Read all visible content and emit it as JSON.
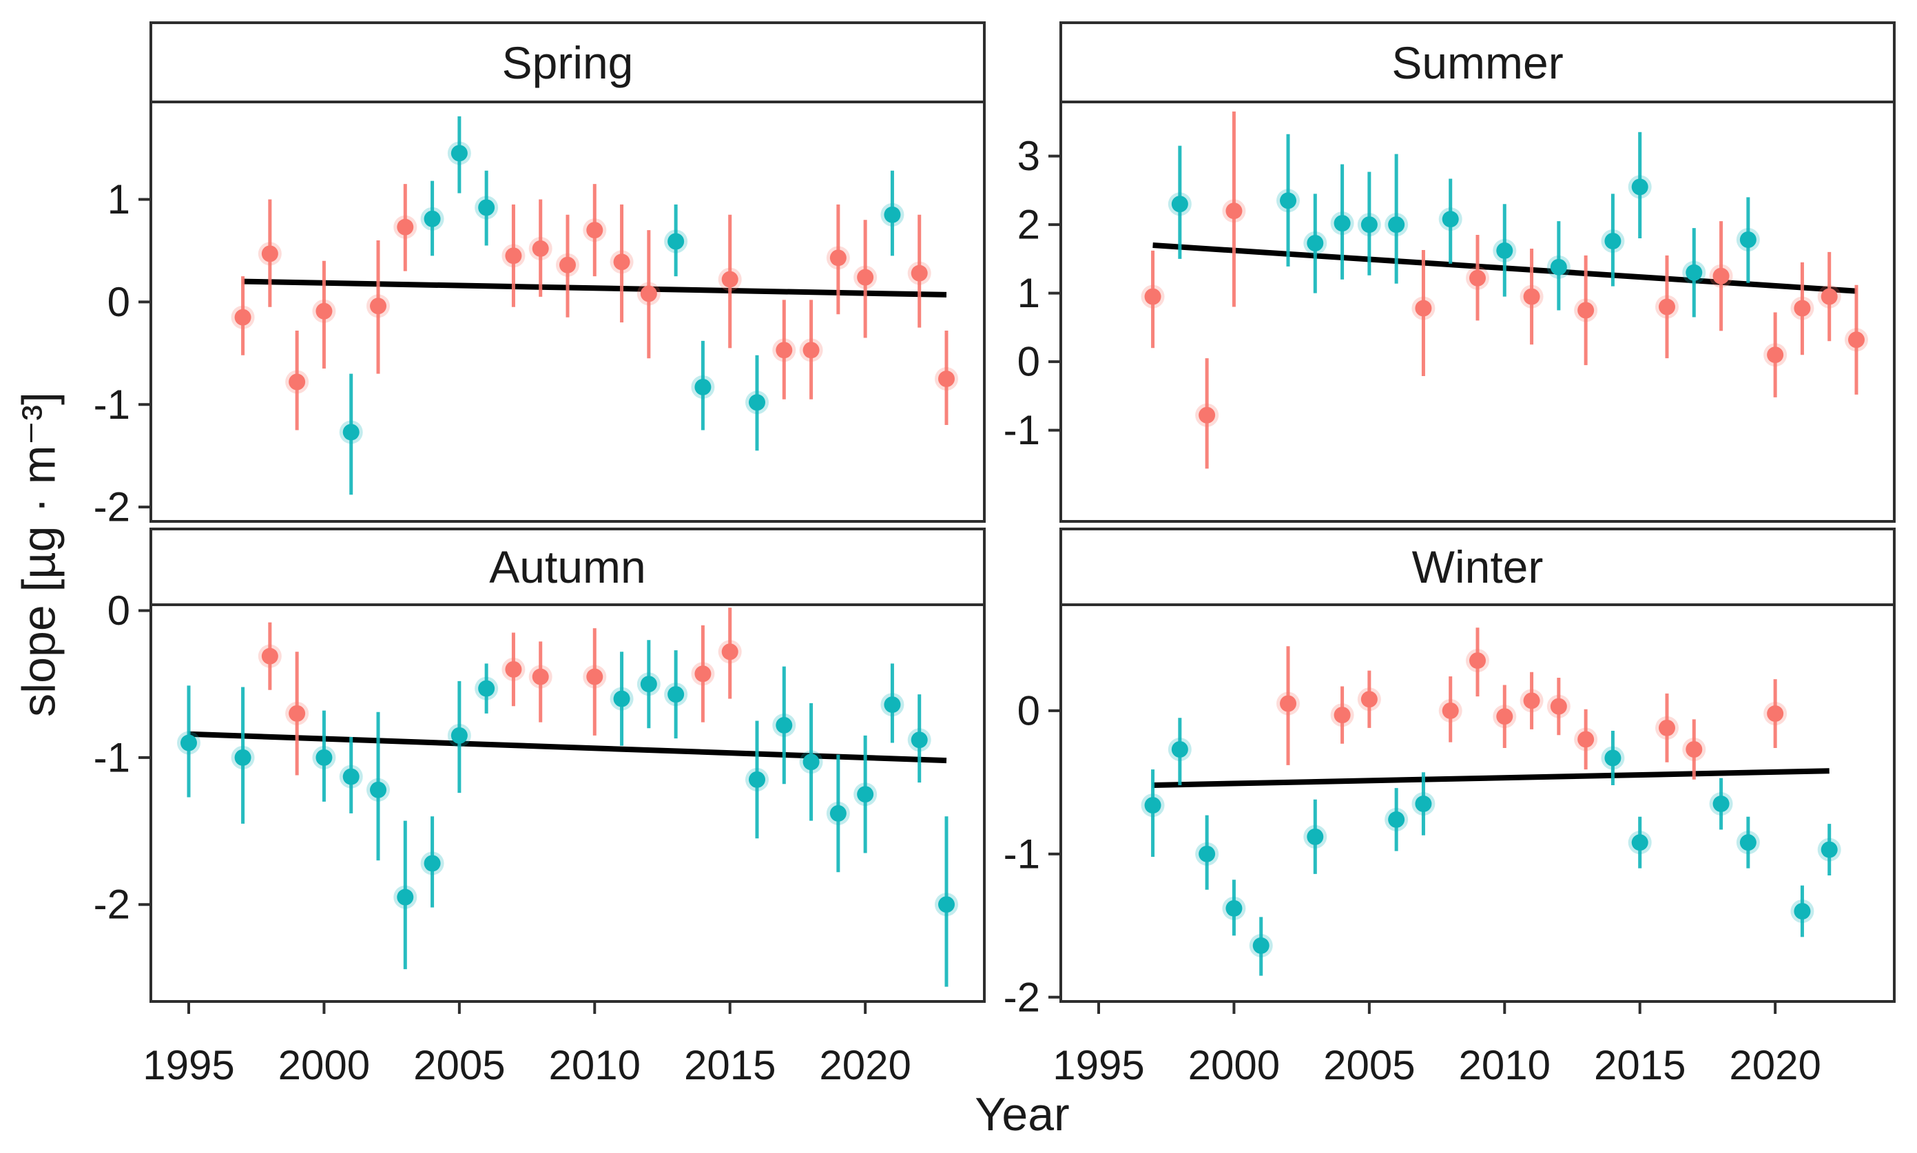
{
  "chart_data": {
    "type": "scatter",
    "title": "",
    "xlabel": "Year",
    "ylabel": "slope [µg · m⁻³]",
    "legend": "none",
    "grid": "off",
    "x_range": [
      1993.6,
      2024.4
    ],
    "x_ticks": [
      1995,
      2000,
      2005,
      2010,
      2015,
      2020
    ],
    "colors": {
      "red": "#F8766D",
      "teal": "#10B5BA",
      "trend": "#000000",
      "border": "#2e2e2e",
      "text": "#1a1a1a",
      "background": "#ffffff"
    },
    "layout": {
      "fig_w": 2783,
      "fig_h": 1674,
      "cols": [
        [
          219,
          1429
        ],
        [
          1540,
          2750
        ]
      ],
      "strip_rows": [
        [
          33,
          148
        ],
        [
          768,
          878
        ]
      ],
      "panel_rows": [
        [
          148,
          757
        ],
        [
          878,
          1454
        ]
      ],
      "tick_len": 18,
      "border_w": 4,
      "marker_r": 12,
      "errbar_w": 5,
      "trend_w": 8,
      "tick_font": 60,
      "x_tick_label_y": 1537,
      "x_axis_title_x": 1484,
      "x_axis_title_y": 1618,
      "y_axis_title_x": 57,
      "y_axis_title_y": 805
    },
    "panels": [
      {
        "title": "Spring",
        "row": 0,
        "col": 0,
        "y_range": [
          -2.14,
          1.95
        ],
        "y_ticks": [
          1,
          0,
          -1,
          -2
        ],
        "trend": {
          "x1": 1997,
          "y1": 0.2,
          "x2": 2023,
          "y2": 0.07
        },
        "points": [
          {
            "x": 1997,
            "y": -0.15,
            "lo": -0.52,
            "hi": 0.25,
            "c": "red"
          },
          {
            "x": 1998,
            "y": 0.47,
            "lo": -0.05,
            "hi": 1.0,
            "c": "red"
          },
          {
            "x": 1999,
            "y": -0.78,
            "lo": -1.25,
            "hi": -0.28,
            "c": "red"
          },
          {
            "x": 2000,
            "y": -0.09,
            "lo": -0.65,
            "hi": 0.4,
            "c": "red"
          },
          {
            "x": 2001,
            "y": -1.27,
            "lo": -1.88,
            "hi": -0.7,
            "c": "teal"
          },
          {
            "x": 2002,
            "y": -0.04,
            "lo": -0.7,
            "hi": 0.6,
            "c": "red"
          },
          {
            "x": 2003,
            "y": 0.73,
            "lo": 0.3,
            "hi": 1.15,
            "c": "red"
          },
          {
            "x": 2004,
            "y": 0.81,
            "lo": 0.45,
            "hi": 1.18,
            "c": "teal"
          },
          {
            "x": 2005,
            "y": 1.45,
            "lo": 1.06,
            "hi": 1.81,
            "c": "teal"
          },
          {
            "x": 2006,
            "y": 0.92,
            "lo": 0.55,
            "hi": 1.28,
            "c": "teal"
          },
          {
            "x": 2007,
            "y": 0.45,
            "lo": -0.05,
            "hi": 0.95,
            "c": "red"
          },
          {
            "x": 2008,
            "y": 0.52,
            "lo": 0.05,
            "hi": 1.0,
            "c": "red"
          },
          {
            "x": 2009,
            "y": 0.36,
            "lo": -0.15,
            "hi": 0.85,
            "c": "red"
          },
          {
            "x": 2010,
            "y": 0.7,
            "lo": 0.25,
            "hi": 1.15,
            "c": "red"
          },
          {
            "x": 2011,
            "y": 0.39,
            "lo": -0.2,
            "hi": 0.95,
            "c": "red"
          },
          {
            "x": 2012,
            "y": 0.08,
            "lo": -0.55,
            "hi": 0.7,
            "c": "red"
          },
          {
            "x": 2013,
            "y": 0.59,
            "lo": 0.25,
            "hi": 0.95,
            "c": "teal"
          },
          {
            "x": 2014,
            "y": -0.83,
            "lo": -1.25,
            "hi": -0.38,
            "c": "teal"
          },
          {
            "x": 2015,
            "y": 0.22,
            "lo": -0.45,
            "hi": 0.85,
            "c": "red"
          },
          {
            "x": 2016,
            "y": -0.98,
            "lo": -1.45,
            "hi": -0.52,
            "c": "teal"
          },
          {
            "x": 2017,
            "y": -0.47,
            "lo": -0.95,
            "hi": 0.02,
            "c": "red"
          },
          {
            "x": 2018,
            "y": -0.47,
            "lo": -0.95,
            "hi": 0.02,
            "c": "red"
          },
          {
            "x": 2019,
            "y": 0.43,
            "lo": -0.12,
            "hi": 0.95,
            "c": "red"
          },
          {
            "x": 2020,
            "y": 0.24,
            "lo": -0.35,
            "hi": 0.8,
            "c": "red"
          },
          {
            "x": 2021,
            "y": 0.85,
            "lo": 0.45,
            "hi": 1.28,
            "c": "teal"
          },
          {
            "x": 2022,
            "y": 0.28,
            "lo": -0.25,
            "hi": 0.85,
            "c": "red"
          },
          {
            "x": 2023,
            "y": -0.75,
            "lo": -1.2,
            "hi": -0.28,
            "c": "red"
          }
        ]
      },
      {
        "title": "Summer",
        "row": 0,
        "col": 1,
        "y_range": [
          -2.33,
          3.79
        ],
        "y_ticks": [
          3,
          2,
          1,
          0,
          -1
        ],
        "trend": {
          "x1": 1997,
          "y1": 1.7,
          "x2": 2023,
          "y2": 1.03
        },
        "points": [
          {
            "x": 1997,
            "y": 0.95,
            "lo": 0.2,
            "hi": 1.62,
            "c": "red"
          },
          {
            "x": 1998,
            "y": 2.3,
            "lo": 1.5,
            "hi": 3.15,
            "c": "teal"
          },
          {
            "x": 1999,
            "y": -0.78,
            "lo": -1.56,
            "hi": 0.05,
            "c": "red"
          },
          {
            "x": 2000,
            "y": 2.2,
            "lo": 0.8,
            "hi": 3.65,
            "c": "red"
          },
          {
            "x": 2002,
            "y": 2.35,
            "lo": 1.39,
            "hi": 3.32,
            "c": "teal"
          },
          {
            "x": 2003,
            "y": 1.73,
            "lo": 1.0,
            "hi": 2.45,
            "c": "teal"
          },
          {
            "x": 2004,
            "y": 2.02,
            "lo": 1.2,
            "hi": 2.88,
            "c": "teal"
          },
          {
            "x": 2005,
            "y": 2.0,
            "lo": 1.26,
            "hi": 2.77,
            "c": "teal"
          },
          {
            "x": 2006,
            "y": 2.0,
            "lo": 1.14,
            "hi": 3.03,
            "c": "teal"
          },
          {
            "x": 2007,
            "y": 0.78,
            "lo": -0.21,
            "hi": 1.63,
            "c": "red"
          },
          {
            "x": 2008,
            "y": 2.08,
            "lo": 1.43,
            "hi": 2.67,
            "c": "teal"
          },
          {
            "x": 2009,
            "y": 1.22,
            "lo": 0.6,
            "hi": 1.85,
            "c": "red"
          },
          {
            "x": 2010,
            "y": 1.62,
            "lo": 0.95,
            "hi": 2.3,
            "c": "teal"
          },
          {
            "x": 2011,
            "y": 0.95,
            "lo": 0.25,
            "hi": 1.65,
            "c": "red"
          },
          {
            "x": 2012,
            "y": 1.38,
            "lo": 0.75,
            "hi": 2.05,
            "c": "teal"
          },
          {
            "x": 2013,
            "y": 0.75,
            "lo": -0.05,
            "hi": 1.55,
            "c": "red"
          },
          {
            "x": 2014,
            "y": 1.76,
            "lo": 1.1,
            "hi": 2.45,
            "c": "teal"
          },
          {
            "x": 2015,
            "y": 2.55,
            "lo": 1.8,
            "hi": 3.35,
            "c": "teal"
          },
          {
            "x": 2016,
            "y": 0.8,
            "lo": 0.05,
            "hi": 1.55,
            "c": "red"
          },
          {
            "x": 2017,
            "y": 1.3,
            "lo": 0.65,
            "hi": 1.95,
            "c": "teal"
          },
          {
            "x": 2018,
            "y": 1.25,
            "lo": 0.45,
            "hi": 2.05,
            "c": "red"
          },
          {
            "x": 2019,
            "y": 1.78,
            "lo": 1.15,
            "hi": 2.4,
            "c": "teal"
          },
          {
            "x": 2020,
            "y": 0.1,
            "lo": -0.52,
            "hi": 0.72,
            "c": "red"
          },
          {
            "x": 2021,
            "y": 0.78,
            "lo": 0.1,
            "hi": 1.45,
            "c": "red"
          },
          {
            "x": 2022,
            "y": 0.95,
            "lo": 0.3,
            "hi": 1.6,
            "c": "red"
          },
          {
            "x": 2023,
            "y": 0.32,
            "lo": -0.48,
            "hi": 1.12,
            "c": "red"
          }
        ]
      },
      {
        "title": "Autumn",
        "row": 1,
        "col": 0,
        "y_range": [
          -2.66,
          0.04
        ],
        "y_ticks": [
          0,
          -1,
          -2
        ],
        "trend": {
          "x1": 1995,
          "y1": -0.84,
          "x2": 2023,
          "y2": -1.02
        },
        "points": [
          {
            "x": 1995,
            "y": -0.9,
            "lo": -1.27,
            "hi": -0.51,
            "c": "teal"
          },
          {
            "x": 1997,
            "y": -1.0,
            "lo": -1.45,
            "hi": -0.52,
            "c": "teal"
          },
          {
            "x": 1998,
            "y": -0.31,
            "lo": -0.54,
            "hi": -0.08,
            "c": "red"
          },
          {
            "x": 1999,
            "y": -0.7,
            "lo": -1.12,
            "hi": -0.28,
            "c": "red"
          },
          {
            "x": 2000,
            "y": -1.0,
            "lo": -1.3,
            "hi": -0.68,
            "c": "teal"
          },
          {
            "x": 2001,
            "y": -1.13,
            "lo": -1.38,
            "hi": -0.86,
            "c": "teal"
          },
          {
            "x": 2002,
            "y": -1.22,
            "lo": -1.7,
            "hi": -0.69,
            "c": "teal"
          },
          {
            "x": 2003,
            "y": -1.95,
            "lo": -2.44,
            "hi": -1.43,
            "c": "teal"
          },
          {
            "x": 2004,
            "y": -1.72,
            "lo": -2.02,
            "hi": -1.4,
            "c": "teal"
          },
          {
            "x": 2005,
            "y": -0.85,
            "lo": -1.24,
            "hi": -0.48,
            "c": "teal"
          },
          {
            "x": 2006,
            "y": -0.53,
            "lo": -0.7,
            "hi": -0.36,
            "c": "teal"
          },
          {
            "x": 2007,
            "y": -0.4,
            "lo": -0.65,
            "hi": -0.15,
            "c": "red"
          },
          {
            "x": 2008,
            "y": -0.45,
            "lo": -0.76,
            "hi": -0.21,
            "c": "red"
          },
          {
            "x": 2010,
            "y": -0.45,
            "lo": -0.85,
            "hi": -0.12,
            "c": "red"
          },
          {
            "x": 2011,
            "y": -0.6,
            "lo": -0.92,
            "hi": -0.28,
            "c": "teal"
          },
          {
            "x": 2012,
            "y": -0.5,
            "lo": -0.8,
            "hi": -0.2,
            "c": "teal"
          },
          {
            "x": 2013,
            "y": -0.57,
            "lo": -0.87,
            "hi": -0.27,
            "c": "teal"
          },
          {
            "x": 2014,
            "y": -0.43,
            "lo": -0.76,
            "hi": -0.1,
            "c": "red"
          },
          {
            "x": 2015,
            "y": -0.28,
            "lo": -0.6,
            "hi": 0.02,
            "c": "red"
          },
          {
            "x": 2016,
            "y": -1.15,
            "lo": -1.55,
            "hi": -0.75,
            "c": "teal"
          },
          {
            "x": 2017,
            "y": -0.78,
            "lo": -1.18,
            "hi": -0.38,
            "c": "teal"
          },
          {
            "x": 2018,
            "y": -1.03,
            "lo": -1.43,
            "hi": -0.63,
            "c": "teal"
          },
          {
            "x": 2019,
            "y": -1.38,
            "lo": -1.78,
            "hi": -0.98,
            "c": "teal"
          },
          {
            "x": 2020,
            "y": -1.25,
            "lo": -1.65,
            "hi": -0.85,
            "c": "teal"
          },
          {
            "x": 2021,
            "y": -0.64,
            "lo": -0.9,
            "hi": -0.36,
            "c": "teal"
          },
          {
            "x": 2022,
            "y": -0.88,
            "lo": -1.17,
            "hi": -0.57,
            "c": "teal"
          },
          {
            "x": 2023,
            "y": -2.0,
            "lo": -2.56,
            "hi": -1.4,
            "c": "teal"
          }
        ]
      },
      {
        "title": "Winter",
        "row": 1,
        "col": 1,
        "y_range": [
          -2.03,
          0.74
        ],
        "y_ticks": [
          0,
          -1,
          -2
        ],
        "trend": {
          "x1": 1997,
          "y1": -0.52,
          "x2": 2022,
          "y2": -0.42
        },
        "points": [
          {
            "x": 1997,
            "y": -0.66,
            "lo": -1.02,
            "hi": -0.41,
            "c": "teal"
          },
          {
            "x": 1998,
            "y": -0.27,
            "lo": -0.52,
            "hi": -0.05,
            "c": "teal"
          },
          {
            "x": 1999,
            "y": -1.0,
            "lo": -1.25,
            "hi": -0.73,
            "c": "teal"
          },
          {
            "x": 2000,
            "y": -1.38,
            "lo": -1.57,
            "hi": -1.18,
            "c": "teal"
          },
          {
            "x": 2001,
            "y": -1.64,
            "lo": -1.85,
            "hi": -1.44,
            "c": "teal"
          },
          {
            "x": 2002,
            "y": 0.05,
            "lo": -0.38,
            "hi": 0.45,
            "c": "red"
          },
          {
            "x": 2003,
            "y": -0.88,
            "lo": -1.14,
            "hi": -0.62,
            "c": "teal"
          },
          {
            "x": 2004,
            "y": -0.03,
            "lo": -0.23,
            "hi": 0.17,
            "c": "red"
          },
          {
            "x": 2005,
            "y": 0.08,
            "lo": -0.12,
            "hi": 0.28,
            "c": "red"
          },
          {
            "x": 2006,
            "y": -0.76,
            "lo": -0.98,
            "hi": -0.54,
            "c": "teal"
          },
          {
            "x": 2007,
            "y": -0.65,
            "lo": -0.87,
            "hi": -0.43,
            "c": "teal"
          },
          {
            "x": 2008,
            "y": 0.0,
            "lo": -0.22,
            "hi": 0.24,
            "c": "red"
          },
          {
            "x": 2009,
            "y": 0.35,
            "lo": 0.1,
            "hi": 0.58,
            "c": "red"
          },
          {
            "x": 2010,
            "y": -0.04,
            "lo": -0.26,
            "hi": 0.18,
            "c": "red"
          },
          {
            "x": 2011,
            "y": 0.07,
            "lo": -0.13,
            "hi": 0.27,
            "c": "red"
          },
          {
            "x": 2012,
            "y": 0.03,
            "lo": -0.17,
            "hi": 0.23,
            "c": "red"
          },
          {
            "x": 2013,
            "y": -0.2,
            "lo": -0.41,
            "hi": 0.01,
            "c": "red"
          },
          {
            "x": 2014,
            "y": -0.33,
            "lo": -0.52,
            "hi": -0.14,
            "c": "teal"
          },
          {
            "x": 2015,
            "y": -0.92,
            "lo": -1.1,
            "hi": -0.74,
            "c": "teal"
          },
          {
            "x": 2016,
            "y": -0.12,
            "lo": -0.36,
            "hi": 0.12,
            "c": "red"
          },
          {
            "x": 2017,
            "y": -0.27,
            "lo": -0.48,
            "hi": -0.06,
            "c": "red"
          },
          {
            "x": 2018,
            "y": -0.65,
            "lo": -0.83,
            "hi": -0.47,
            "c": "teal"
          },
          {
            "x": 2019,
            "y": -0.92,
            "lo": -1.1,
            "hi": -0.74,
            "c": "teal"
          },
          {
            "x": 2020,
            "y": -0.02,
            "lo": -0.26,
            "hi": 0.22,
            "c": "red"
          },
          {
            "x": 2021,
            "y": -1.4,
            "lo": -1.58,
            "hi": -1.22,
            "c": "teal"
          },
          {
            "x": 2022,
            "y": -0.97,
            "lo": -1.15,
            "hi": -0.79,
            "c": "teal"
          }
        ]
      }
    ]
  }
}
